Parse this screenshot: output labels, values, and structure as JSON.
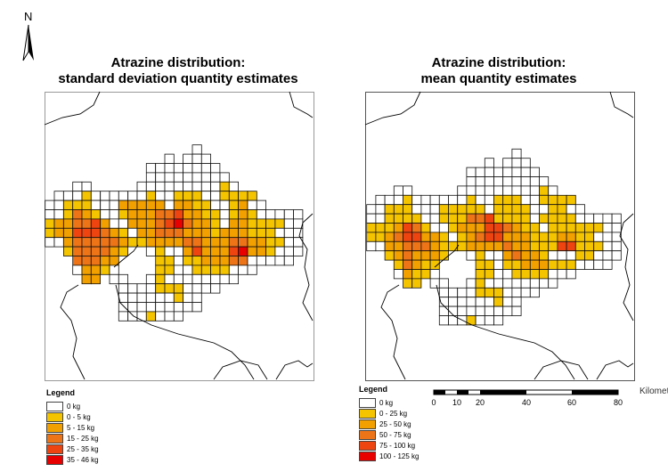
{
  "north_arrow": {
    "label": "N"
  },
  "maps": [
    {
      "title_line1": "Atrazine distribution:",
      "title_line2": "standard deviation quantity estimates",
      "legend": {
        "title": "Legend",
        "items": [
          {
            "label": "0 kg",
            "color": "#ffffff"
          },
          {
            "label": "0 - 5 kg",
            "color": "#f5c400"
          },
          {
            "label": "5 - 15 kg",
            "color": "#f2a000"
          },
          {
            "label": "15 - 25 kg",
            "color": "#ee7418"
          },
          {
            "label": "25 - 35 kg",
            "color": "#ee4510"
          },
          {
            "label": "35 - 46 kg",
            "color": "#e80000"
          }
        ]
      },
      "grid": [
        "................0............",
        ".............0.000...........",
        "...........00000000..........",
        "...........000000000.........",
        "...00.....00000000010........",
        ".0001000000100111001111......",
        "001110002222202211001200.....",
        "0013210012223342211012100000.",
        "1223342002223453221022111100.",
        "1224443210223332221222111000.",
        "0023333321122223322233221100.",
        "..1333321..01002422245221000.",
        "...33322....110112223300000..",
        "...02210....11001111000......",
        "....22.00..0100000000........",
        "........00001110000..........",
        "........000000100............",
        "........000000000............",
        "........0001000.............."
      ]
    },
    {
      "title_line1": "Atrazine distribution:",
      "title_line2": "mean quantity estimates",
      "legend": {
        "title": "Legend",
        "items": [
          {
            "label": "0 kg",
            "color": "#ffffff"
          },
          {
            "label": "0 - 25 kg",
            "color": "#f5c400"
          },
          {
            "label": "25 - 50 kg",
            "color": "#f2a000"
          },
          {
            "label": "50 - 75 kg",
            "color": "#ee7418"
          },
          {
            "label": "75 - 100 kg",
            "color": "#ee4510"
          },
          {
            "label": "100 - 125 kg",
            "color": "#e80000"
          }
        ]
      },
      "grid": [
        "................0............",
        ".............0.000...........",
        "...........00000000..........",
        "...........000000000.........",
        "...00.....00000000010........",
        ".0001000000100111001111......",
        "001110001111101111001100.....",
        "0011110011133411110111100000.",
        "1112431001222443211011111100.",
        "1123442210123442221112211000.",
        "0022333211122223221114411100.",
        "..1232221..01002322100011000.",
        "...13211....110112221110000..",
        "...02110....11001111000......",
        "....11.00..0100000000........",
        "........00001110000..........",
        "........000000100............",
        "........000000000............",
        "........0001000.............."
      ]
    }
  ],
  "scale_bar": {
    "unit": "Kilometers",
    "ticks": [
      "0",
      "10",
      "20",
      "40",
      "60",
      "80"
    ]
  }
}
